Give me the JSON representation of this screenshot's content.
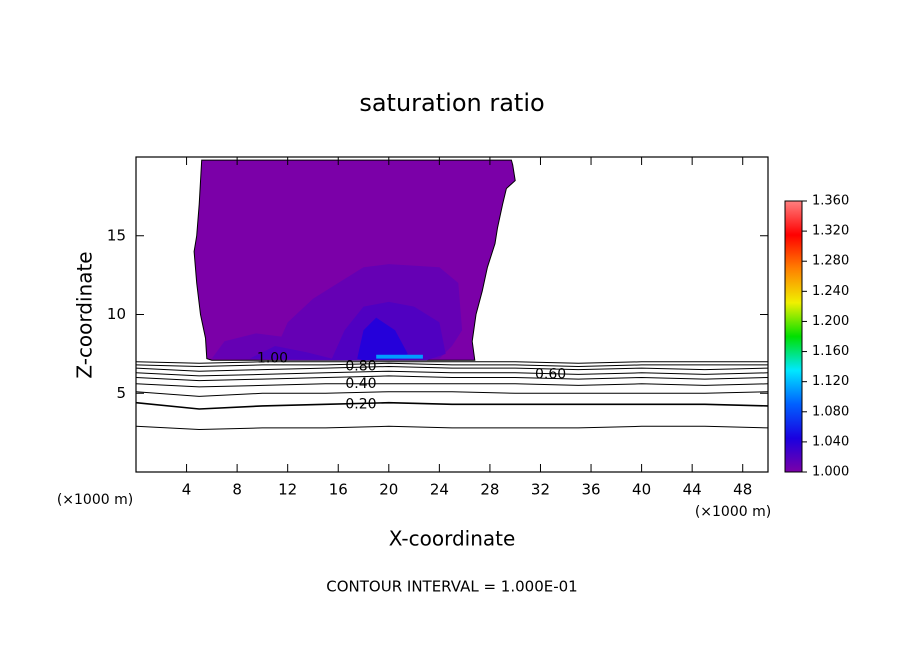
{
  "chart_data": {
    "type": "contour",
    "title": "saturation ratio",
    "xlabel": "X-coordinate",
    "ylabel": "Z-coordinate",
    "x_unit": "(×1000 m)",
    "footer": "CONTOUR INTERVAL = 1.000E-01",
    "xlim": [
      0,
      50
    ],
    "xticks": [
      4,
      8,
      12,
      16,
      20,
      24,
      28,
      32,
      36,
      40,
      44,
      48
    ],
    "ylim": [
      0,
      20
    ],
    "yticks": [
      5,
      10,
      15
    ],
    "colormap": [
      "#7b00a8",
      "#1a00e0",
      "#0060ff",
      "#00e8ff",
      "#00e000",
      "#f0f000",
      "#ff8000",
      "#ff0000",
      "#ff8080"
    ],
    "colorbar": {
      "lim": [
        1.0,
        1.36
      ],
      "ticks": [
        {
          "value": 1.0,
          "label": "1.000"
        },
        {
          "value": 1.04,
          "label": "1.040"
        },
        {
          "value": 1.08,
          "label": "1.080"
        },
        {
          "value": 1.12,
          "label": "1.120"
        },
        {
          "value": 1.16,
          "label": "1.160"
        },
        {
          "value": 1.2,
          "label": "1.200"
        },
        {
          "value": 1.24,
          "label": "1.240"
        },
        {
          "value": 1.28,
          "label": "1.280"
        },
        {
          "value": 1.32,
          "label": "1.320"
        },
        {
          "value": 1.36,
          "label": "1.360"
        }
      ]
    },
    "regions": [
      {
        "level": 1.0,
        "x": [
          5.2,
          5.0,
          4.8,
          4.6,
          4.8,
          5.1,
          5.5,
          5.6,
          6.0,
          26.8,
          26.6,
          26.9,
          27.4,
          27.8,
          28.4,
          28.6,
          29.0,
          29.3,
          30.0,
          29.8,
          29.7
        ],
        "y": [
          19.8,
          17,
          15,
          14,
          12,
          10,
          8.5,
          7.2,
          7.1,
          7.1,
          8.3,
          10,
          11.5,
          13,
          14.5,
          15.5,
          17,
          18,
          18.5,
          19.5,
          19.8
        ]
      },
      {
        "level": 1.01,
        "x": [
          6.0,
          7.0,
          9.5,
          11.5,
          12.0,
          14.0,
          16.0,
          18.0,
          20.0,
          24.0,
          25.5,
          25.8,
          25.0,
          24.0,
          18.0,
          12.0
        ],
        "y": [
          7.2,
          8.3,
          8.8,
          8.6,
          9.5,
          11,
          12,
          13,
          13.2,
          13,
          12,
          9,
          8,
          7.2,
          7.1,
          7.1
        ]
      },
      {
        "level": 1.02,
        "x": [
          9.0,
          11.0,
          13.5,
          15.5,
          16.5,
          18.0,
          20.0,
          22.0,
          24.0,
          24.5,
          23.0,
          20.0,
          17.0
        ],
        "y": [
          7.2,
          8.0,
          7.6,
          7.2,
          9,
          10.5,
          10.8,
          10.5,
          9.5,
          7.5,
          7.1,
          7.1,
          7.1
        ]
      },
      {
        "level": 1.04,
        "x": [
          17.5,
          18.0,
          19.0,
          20.5,
          21.5,
          21.0,
          18.0
        ],
        "y": [
          7.2,
          9,
          9.8,
          9,
          7.5,
          7.2,
          7.1
        ]
      },
      {
        "level": 1.11,
        "x": [
          19.0,
          22.7,
          22.7,
          19.0
        ],
        "y": [
          7.2,
          7.2,
          7.45,
          7.45
        ]
      }
    ],
    "contours": [
      {
        "level": 0.1,
        "x": [
          0,
          5,
          10,
          15,
          20,
          25,
          30,
          35,
          40,
          45,
          50
        ],
        "y": [
          2.9,
          2.7,
          2.8,
          2.8,
          2.9,
          2.8,
          2.8,
          2.8,
          2.9,
          2.9,
          2.8
        ]
      },
      {
        "level": 0.2,
        "x": [
          0,
          5,
          10,
          15,
          20,
          25,
          30,
          35,
          40,
          45,
          50
        ],
        "y": [
          4.4,
          4.0,
          4.2,
          4.3,
          4.4,
          4.3,
          4.3,
          4.3,
          4.3,
          4.3,
          4.2
        ]
      },
      {
        "level": 0.3,
        "x": [
          0,
          5,
          10,
          15,
          20,
          25,
          30,
          35,
          40,
          45,
          50
        ],
        "y": [
          5.1,
          4.8,
          5.0,
          5.0,
          5.1,
          5.1,
          5.0,
          5.0,
          5.0,
          5.0,
          5.1
        ]
      },
      {
        "level": 0.4,
        "x": [
          0,
          5,
          10,
          15,
          20,
          25,
          30,
          35,
          40,
          45,
          50
        ],
        "y": [
          5.6,
          5.4,
          5.5,
          5.6,
          5.6,
          5.6,
          5.6,
          5.5,
          5.6,
          5.5,
          5.6
        ]
      },
      {
        "level": 0.5,
        "x": [
          0,
          5,
          10,
          15,
          20,
          25,
          30,
          35,
          40,
          45,
          50
        ],
        "y": [
          6.0,
          5.8,
          5.9,
          6.0,
          6.1,
          6.0,
          6.0,
          5.9,
          6.0,
          5.9,
          6.0
        ]
      },
      {
        "level": 0.6,
        "x": [
          0,
          5,
          10,
          15,
          20,
          25,
          30,
          35,
          40,
          45,
          50
        ],
        "y": [
          6.3,
          6.1,
          6.2,
          6.3,
          6.4,
          6.3,
          6.3,
          6.2,
          6.3,
          6.2,
          6.3
        ]
      },
      {
        "level": 0.7,
        "x": [
          0,
          5,
          10,
          15,
          20,
          25,
          30,
          35,
          40,
          45,
          50
        ],
        "y": [
          6.6,
          6.4,
          6.5,
          6.6,
          6.7,
          6.6,
          6.6,
          6.5,
          6.6,
          6.5,
          6.6
        ]
      },
      {
        "level": 0.8,
        "x": [
          0,
          5,
          10,
          15,
          20,
          25,
          30,
          35,
          40,
          45,
          50
        ],
        "y": [
          6.8,
          6.7,
          6.8,
          6.8,
          6.9,
          6.8,
          6.8,
          6.7,
          6.8,
          6.8,
          6.8
        ]
      },
      {
        "level": 0.9,
        "x": [
          0,
          5,
          10,
          15,
          20,
          25,
          30,
          35,
          40,
          45,
          50
        ],
        "y": [
          7.0,
          6.9,
          7.0,
          7.0,
          7.0,
          7.0,
          7.0,
          6.9,
          7.0,
          7.0,
          7.0
        ]
      }
    ],
    "contour_labels": [
      {
        "text": "1.00",
        "x": 10.8,
        "y": 7.2
      },
      {
        "text": "0.80",
        "x": 17.8,
        "y": 6.7
      },
      {
        "text": "0.60",
        "x": 32.8,
        "y": 6.2
      },
      {
        "text": "0.40",
        "x": 17.8,
        "y": 5.6
      },
      {
        "text": "0.20",
        "x": 17.8,
        "y": 4.3
      }
    ]
  }
}
